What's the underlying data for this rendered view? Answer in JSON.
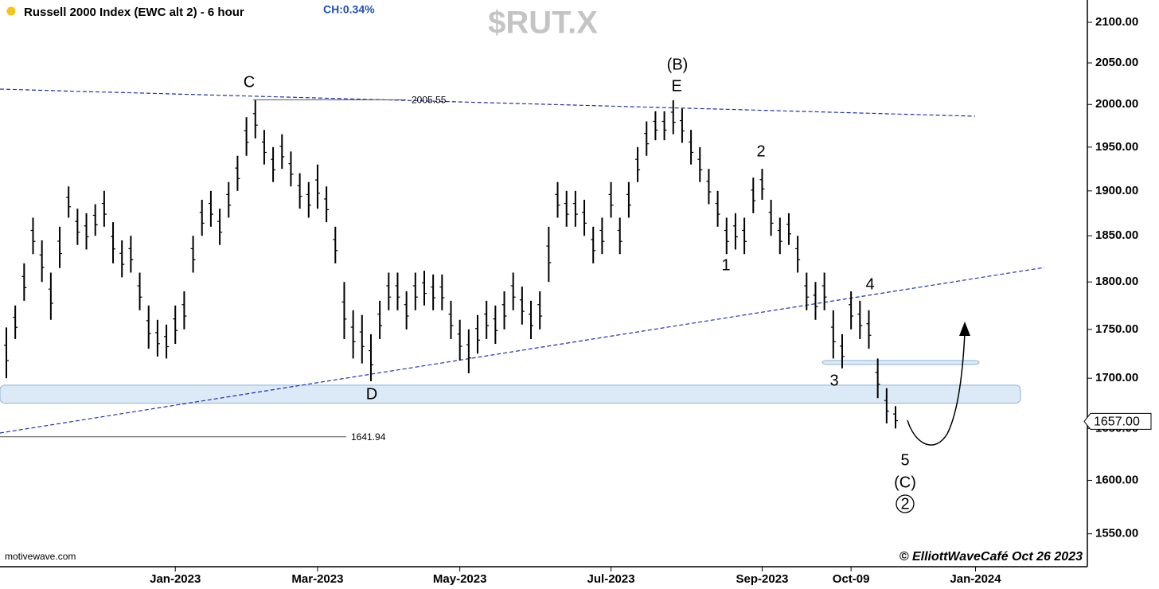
{
  "chart_data": {
    "type": "ohlc",
    "title": "Russell 2000 Index (EWC alt 2) - 6 hour",
    "change": "CH:0.34%",
    "symbol": "$RUT.X",
    "source": "motivewave.com",
    "credit": "© ElliottWaveCafé Oct 26 2023",
    "log_scale": true,
    "color": "#000000",
    "ylim": [
      1520,
      2128
    ],
    "yticks": [
      {
        "value": 1550,
        "label": "1550.00"
      },
      {
        "value": 1600,
        "label": "1600.00"
      },
      {
        "value": 1650,
        "label": "1650.00"
      },
      {
        "value": 1700,
        "label": "1700.00"
      },
      {
        "value": 1750,
        "label": "1750.00"
      },
      {
        "value": 1800,
        "label": "1800.00"
      },
      {
        "value": 1850,
        "label": "1850.00"
      },
      {
        "value": 1900,
        "label": "1900.00"
      },
      {
        "value": 1950,
        "label": "1950.00"
      },
      {
        "value": 2000,
        "label": "2000.00"
      },
      {
        "value": 2050,
        "label": "2050.00"
      },
      {
        "value": 2100,
        "label": "2100.00"
      }
    ],
    "categories": [
      null,
      null,
      null,
      null,
      null,
      null,
      null,
      null,
      null,
      null,
      null,
      null,
      null,
      null,
      null,
      null,
      null,
      null,
      null,
      "Jan-2023",
      null,
      null,
      null,
      null,
      null,
      null,
      null,
      null,
      null,
      null,
      null,
      null,
      null,
      null,
      null,
      "Mar-2023",
      null,
      null,
      null,
      null,
      null,
      null,
      null,
      null,
      null,
      null,
      null,
      null,
      null,
      null,
      null,
      "May-2023",
      null,
      null,
      null,
      null,
      null,
      null,
      null,
      null,
      null,
      null,
      null,
      null,
      null,
      null,
      null,
      null,
      "Jul-2023",
      null,
      null,
      null,
      null,
      null,
      null,
      null,
      null,
      null,
      null,
      null,
      null,
      null,
      null,
      null,
      null,
      "Sep-2023",
      null,
      null,
      null,
      null,
      null,
      null,
      null,
      null,
      null,
      "Oct-09",
      null,
      null,
      null,
      null,
      null,
      null,
      null,
      null,
      null,
      null,
      null,
      null,
      null,
      "Jan-2024",
      null,
      null,
      null,
      null,
      null,
      null,
      null,
      null,
      null,
      null
    ],
    "high": [
      1752,
      1775,
      1820,
      1870,
      1845,
      1810,
      1860,
      1905,
      1880,
      1875,
      1885,
      1900,
      1865,
      1845,
      1850,
      1810,
      1775,
      1760,
      1755,
      1775,
      1790,
      1850,
      1890,
      1900,
      1880,
      1910,
      1940,
      1985,
      2005,
      1970,
      1950,
      1965,
      1945,
      1920,
      1910,
      1930,
      1905,
      1860,
      1800,
      1770,
      1765,
      1745,
      1780,
      1810,
      1810,
      1790,
      1810,
      1812,
      1808,
      1808,
      1780,
      1760,
      1750,
      1765,
      1780,
      1775,
      1790,
      1810,
      1795,
      1780,
      1790,
      1860,
      1910,
      1900,
      1900,
      1890,
      1860,
      1870,
      1910,
      1870,
      1910,
      1950,
      1980,
      1992,
      1992,
      2005,
      1995,
      1970,
      1950,
      1925,
      1900,
      1870,
      1875,
      1870,
      1915,
      1925,
      1890,
      1870,
      1875,
      1850,
      1810,
      1800,
      1810,
      1770,
      1745,
      1790,
      1780,
      1770,
      1720,
      1690,
      1672,
      null,
      null,
      null,
      null,
      null,
      null,
      null,
      null,
      null,
      null,
      null,
      null,
      null,
      null,
      null,
      null,
      null,
      null,
      null
    ],
    "low": [
      1700,
      1740,
      1780,
      1830,
      1800,
      1760,
      1815,
      1870,
      1840,
      1835,
      1850,
      1860,
      1820,
      1805,
      1810,
      1770,
      1730,
      1722,
      1720,
      1735,
      1750,
      1810,
      1850,
      1860,
      1840,
      1870,
      1900,
      1940,
      1960,
      1930,
      1910,
      1925,
      1905,
      1880,
      1870,
      1880,
      1865,
      1820,
      1740,
      1720,
      1715,
      1697,
      1740,
      1770,
      1770,
      1750,
      1770,
      1775,
      1770,
      1770,
      1740,
      1718,
      1705,
      1725,
      1740,
      1735,
      1750,
      1770,
      1755,
      1740,
      1750,
      1800,
      1870,
      1860,
      1860,
      1850,
      1820,
      1830,
      1870,
      1830,
      1870,
      1910,
      1940,
      1958,
      1958,
      1965,
      1955,
      1930,
      1910,
      1885,
      1860,
      1830,
      1835,
      1830,
      1875,
      1890,
      1850,
      1830,
      1840,
      1810,
      1770,
      1760,
      1770,
      1720,
      1710,
      1750,
      1740,
      1730,
      1680,
      1655,
      1650,
      null,
      null,
      null,
      null,
      null,
      null,
      null,
      null,
      null,
      null,
      null,
      null,
      null,
      null,
      null,
      null,
      null,
      null,
      null
    ],
    "levels": [
      2005.55,
      1641.94
    ],
    "last_price": {
      "value": 1657,
      "label": "1657.00"
    },
    "zones": [
      {
        "low": 1675,
        "high": 1693
      },
      {
        "low": 1714,
        "high": 1718
      }
    ],
    "annotations": [
      "C",
      "(B)",
      "E",
      "D",
      "1",
      "2",
      "3",
      "4",
      "5",
      "(C)",
      "2"
    ]
  }
}
